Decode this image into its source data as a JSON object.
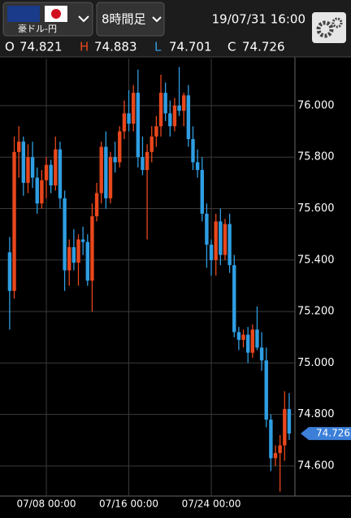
{
  "header": {
    "pair": "豪ドル-円",
    "timeframe": "8時間足",
    "datetime": "19/07/31 16:00"
  },
  "chart_data": {
    "type": "candlestick",
    "ohlc_labels": [
      "O",
      "H",
      "L",
      "C"
    ],
    "categories": [
      null,
      null,
      null,
      null,
      null,
      null,
      null,
      null,
      "07/08 00:00",
      null,
      null,
      null,
      null,
      null,
      null,
      null,
      null,
      null,
      null,
      null,
      null,
      null,
      null,
      null,
      null,
      null,
      "07/16 00:00",
      null,
      null,
      null,
      null,
      null,
      null,
      null,
      null,
      null,
      null,
      null,
      null,
      null,
      null,
      null,
      null,
      null,
      "07/24 00:00",
      null,
      null,
      null,
      null,
      null,
      null,
      null,
      null,
      null,
      null,
      null,
      null,
      null,
      null,
      null,
      null,
      null
    ],
    "open": [
      75.43,
      75.28,
      75.82,
      75.86,
      75.7,
      75.8,
      75.72,
      75.62,
      75.71,
      75.77,
      75.69,
      75.83,
      75.64,
      75.36,
      75.45,
      75.39,
      75.48,
      75.47,
      75.32,
      75.57,
      75.66,
      75.84,
      75.64,
      75.8,
      75.78,
      75.9,
      75.97,
      75.93,
      76.05,
      75.8,
      75.75,
      75.82,
      75.88,
      75.92,
      76.05,
      75.97,
      75.92,
      76.0,
      75.98,
      76.04,
      75.87,
      75.78,
      75.75,
      75.58,
      75.46,
      75.4,
      75.55,
      75.42,
      75.54,
      75.38,
      75.12,
      75.09,
      75.11,
      75.04,
      75.13,
      75.06,
      75.01,
      74.78,
      74.63,
      74.65,
      74.68,
      74.821
    ],
    "high": [
      75.49,
      75.88,
      75.92,
      75.88,
      75.85,
      75.86,
      75.76,
      75.75,
      75.8,
      75.79,
      75.88,
      75.86,
      75.67,
      75.48,
      75.52,
      75.5,
      75.53,
      75.5,
      75.62,
      75.7,
      75.86,
      75.9,
      75.82,
      75.86,
      75.92,
      76.02,
      76.06,
      76.08,
      76.14,
      75.88,
      75.85,
      75.92,
      75.96,
      76.12,
      76.09,
      76.02,
      76.03,
      76.15,
      76.05,
      76.08,
      75.92,
      75.83,
      75.8,
      75.62,
      75.48,
      75.58,
      75.6,
      75.56,
      75.58,
      75.42,
      75.14,
      75.13,
      75.14,
      75.15,
      75.22,
      75.12,
      75.06,
      74.8,
      74.68,
      74.72,
      74.89,
      74.883
    ],
    "low": [
      75.13,
      75.25,
      75.72,
      75.65,
      75.66,
      75.68,
      75.58,
      75.6,
      75.64,
      75.66,
      75.67,
      75.6,
      75.28,
      75.3,
      75.36,
      75.3,
      75.42,
      75.3,
      75.2,
      75.55,
      75.62,
      75.6,
      75.62,
      75.74,
      75.76,
      75.87,
      75.9,
      75.9,
      75.76,
      75.73,
      75.48,
      75.78,
      75.84,
      75.88,
      75.94,
      75.88,
      75.9,
      75.96,
      75.92,
      75.84,
      75.75,
      75.72,
      75.55,
      75.37,
      75.34,
      75.34,
      75.38,
      75.4,
      75.35,
      75.1,
      75.05,
      75.06,
      75.0,
      75.02,
      75.05,
      74.97,
      74.75,
      74.58,
      74.6,
      74.5,
      74.62,
      74.701
    ],
    "close": [
      75.28,
      75.82,
      75.86,
      75.7,
      75.8,
      75.72,
      75.62,
      75.71,
      75.77,
      75.69,
      75.83,
      75.64,
      75.36,
      75.45,
      75.39,
      75.48,
      75.47,
      75.32,
      75.57,
      75.66,
      75.84,
      75.64,
      75.8,
      75.78,
      75.9,
      75.97,
      75.93,
      76.05,
      75.8,
      75.75,
      75.82,
      75.88,
      75.92,
      76.05,
      75.97,
      75.92,
      76.0,
      75.98,
      76.04,
      75.87,
      75.78,
      75.75,
      75.58,
      75.46,
      75.4,
      75.55,
      75.42,
      75.54,
      75.38,
      75.12,
      75.09,
      75.11,
      75.04,
      75.13,
      75.06,
      75.01,
      74.78,
      74.63,
      74.65,
      74.68,
      74.821,
      74.726
    ],
    "up_color": "#e8471c",
    "down_color": "#2f9ee3",
    "ylim": [
      74.483,
      76.183
    ],
    "yticks": [
      {
        "value": 74.6,
        "label": "74.600"
      },
      {
        "value": 74.8,
        "label": "74.800"
      },
      {
        "value": 75.0,
        "label": "75.000"
      },
      {
        "value": 75.2,
        "label": "75.200"
      },
      {
        "value": 75.4,
        "label": "75.400"
      },
      {
        "value": 75.6,
        "label": "75.600"
      },
      {
        "value": 75.8,
        "label": "75.800"
      },
      {
        "value": 76.0,
        "label": "76.000"
      }
    ],
    "grid": true
  }
}
